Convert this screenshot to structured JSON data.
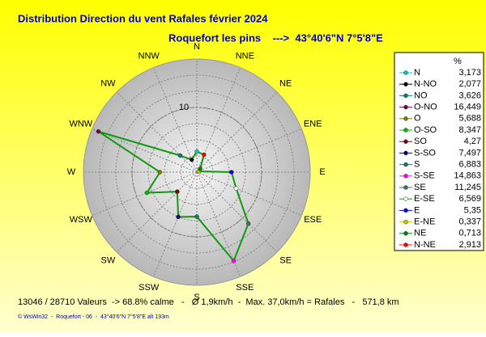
{
  "chart_data": {
    "type": "radar",
    "title": "Distribution Direction du vent Rafales  février 2024",
    "subtitle": "Roquefort les pins    --->  43°40'6\"N 7°5'8\"E",
    "directions": [
      "N",
      "NNE",
      "NE",
      "ENE",
      "E",
      "ESE",
      "SE",
      "SSE",
      "S",
      "SSW",
      "SW",
      "WSW",
      "W",
      "WNW",
      "NW",
      "NNW"
    ],
    "legend_header": "%",
    "categories": [
      "N",
      "N-NO",
      "NO",
      "O-NO",
      "O",
      "O-SO",
      "SO",
      "S-SO",
      "S",
      "S-SE",
      "SE",
      "E-SE",
      "E",
      "E-NE",
      "NE",
      "N-NE"
    ],
    "values": [
      3.173,
      2.077,
      3.626,
      16.449,
      5.688,
      8.347,
      4.27,
      7.497,
      6.883,
      14.863,
      11.245,
      6.569,
      5.35,
      0.337,
      0.713,
      2.913
    ],
    "value_labels": [
      "3,173",
      "2,077",
      "3,626",
      "16,449",
      "5,688",
      "8,347",
      "4,27",
      "7,497",
      "6,883",
      "14,863",
      "11,245",
      "6,569",
      "5,35",
      "0,337",
      "0,713",
      "2,913"
    ],
    "colors": [
      "#00c8c8",
      "#000000",
      "#008080",
      "#800040",
      "#808000",
      "#00c000",
      "#800000",
      "#000080",
      "#008060",
      "#ff00ff",
      "#407060",
      "#ffffff",
      "#0000ff",
      "#c8c800",
      "#008000",
      "#ff0000"
    ],
    "line_color": "#119911",
    "rlim": [
      0,
      17.5
    ],
    "rticks": [
      10
    ],
    "footer": "13046 / 28710 Valeurs  -> 68.8% calme   -   Ø 1,9km/h  -  Max. 37,0km/h = Rafales   -   571,8 km",
    "credit": "© WsWin32  -  Roquefort - 06  -  43°40'6\"N 7°5'8\"E alt 193m"
  }
}
